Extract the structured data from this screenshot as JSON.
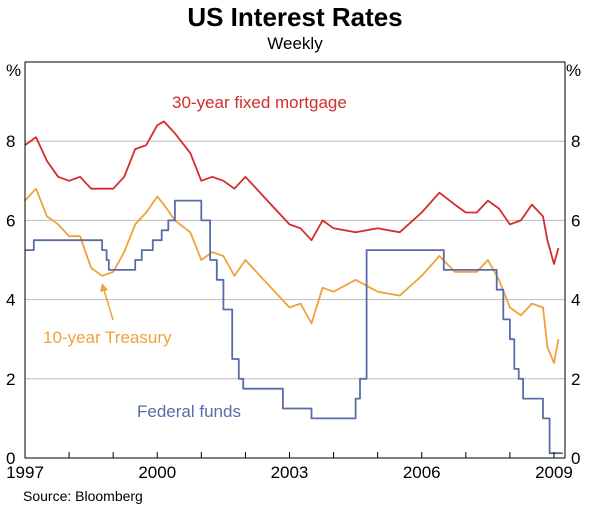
{
  "chart_data": {
    "type": "line",
    "title": "US Interest Rates",
    "subtitle": "Weekly",
    "ylabel_left": "%",
    "ylabel_right": "%",
    "ylim": [
      0,
      10
    ],
    "yticks": [
      0,
      2,
      4,
      6,
      8
    ],
    "xlim": [
      1997,
      2009.25
    ],
    "xticks": [
      1997,
      2000,
      2003,
      2006,
      2009
    ],
    "grid": "horizontal",
    "source": "Source: Bloomberg",
    "series": [
      {
        "name": "30-year fixed mortgage",
        "color": "#d22c2c",
        "x": [
          1997.0,
          1997.25,
          1997.5,
          1997.75,
          1998.0,
          1998.25,
          1998.5,
          1998.75,
          1999.0,
          1999.25,
          1999.5,
          1999.75,
          2000.0,
          2000.15,
          2000.4,
          2000.75,
          2001.0,
          2001.25,
          2001.5,
          2001.75,
          2002.0,
          2002.5,
          2003.0,
          2003.25,
          2003.5,
          2003.75,
          2004.0,
          2004.5,
          2005.0,
          2005.5,
          2006.0,
          2006.4,
          2006.75,
          2007.0,
          2007.25,
          2007.5,
          2007.75,
          2008.0,
          2008.25,
          2008.5,
          2008.75,
          2008.85,
          2009.0,
          2009.1
        ],
        "values": [
          7.9,
          8.1,
          7.5,
          7.1,
          7.0,
          7.1,
          6.8,
          6.8,
          6.8,
          7.1,
          7.8,
          7.9,
          8.4,
          8.5,
          8.2,
          7.7,
          7.0,
          7.1,
          7.0,
          6.8,
          7.1,
          6.5,
          5.9,
          5.8,
          5.5,
          6.0,
          5.8,
          5.7,
          5.8,
          5.7,
          6.2,
          6.7,
          6.4,
          6.2,
          6.2,
          6.5,
          6.3,
          5.9,
          6.0,
          6.4,
          6.1,
          5.5,
          4.9,
          5.3
        ]
      },
      {
        "name": "10-year Treasury",
        "color": "#f0a23a",
        "x": [
          1997.0,
          1997.25,
          1997.5,
          1997.75,
          1998.0,
          1998.25,
          1998.5,
          1998.75,
          1999.0,
          1999.25,
          1999.5,
          1999.75,
          2000.0,
          2000.15,
          2000.4,
          2000.75,
          2001.0,
          2001.25,
          2001.5,
          2001.75,
          2002.0,
          2002.5,
          2003.0,
          2003.25,
          2003.5,
          2003.75,
          2004.0,
          2004.5,
          2005.0,
          2005.5,
          2006.0,
          2006.4,
          2006.75,
          2007.0,
          2007.25,
          2007.5,
          2007.75,
          2008.0,
          2008.25,
          2008.5,
          2008.75,
          2008.85,
          2009.0,
          2009.1
        ],
        "values": [
          6.5,
          6.8,
          6.1,
          5.9,
          5.6,
          5.6,
          4.8,
          4.6,
          4.7,
          5.2,
          5.9,
          6.2,
          6.6,
          6.4,
          6.0,
          5.7,
          5.0,
          5.2,
          5.1,
          4.6,
          5.0,
          4.4,
          3.8,
          3.9,
          3.4,
          4.3,
          4.2,
          4.5,
          4.2,
          4.1,
          4.6,
          5.1,
          4.7,
          4.7,
          4.7,
          5.0,
          4.5,
          3.8,
          3.6,
          3.9,
          3.8,
          2.8,
          2.4,
          3.0
        ]
      },
      {
        "name": "Federal funds",
        "color": "#5b6aa8",
        "x": [
          1997.0,
          1997.2,
          1997.2,
          1998.75,
          1998.75,
          1998.85,
          1998.85,
          1998.9,
          1998.9,
          1999.5,
          1999.5,
          1999.65,
          1999.65,
          1999.9,
          1999.9,
          2000.1,
          2000.1,
          2000.25,
          2000.25,
          2000.4,
          2000.4,
          2001.0,
          2001.0,
          2001.2,
          2001.2,
          2001.35,
          2001.35,
          2001.5,
          2001.5,
          2001.7,
          2001.7,
          2001.85,
          2001.85,
          2001.95,
          2001.95,
          2002.85,
          2002.85,
          2003.5,
          2003.5,
          2004.5,
          2004.5,
          2004.6,
          2004.6,
          2004.75,
          2004.75,
          2006.5,
          2006.5,
          2007.7,
          2007.7,
          2007.85,
          2007.85,
          2008.0,
          2008.0,
          2008.1,
          2008.1,
          2008.2,
          2008.2,
          2008.3,
          2008.3,
          2008.75,
          2008.75,
          2008.9,
          2008.9,
          2009.2
        ],
        "values": [
          5.25,
          5.25,
          5.5,
          5.5,
          5.25,
          5.25,
          5.0,
          5.0,
          4.75,
          4.75,
          5.0,
          5.0,
          5.25,
          5.25,
          5.5,
          5.5,
          5.75,
          5.75,
          6.0,
          6.0,
          6.5,
          6.5,
          6.0,
          6.0,
          5.0,
          5.0,
          4.5,
          4.5,
          3.75,
          3.75,
          2.5,
          2.5,
          2.0,
          2.0,
          1.75,
          1.75,
          1.25,
          1.25,
          1.0,
          1.0,
          1.5,
          1.5,
          2.0,
          2.0,
          5.25,
          5.25,
          4.75,
          4.75,
          4.25,
          4.25,
          3.5,
          3.5,
          3.0,
          3.0,
          2.25,
          2.25,
          2.0,
          2.0,
          1.5,
          1.5,
          1.0,
          1.0,
          0.12,
          0.12
        ]
      }
    ]
  }
}
